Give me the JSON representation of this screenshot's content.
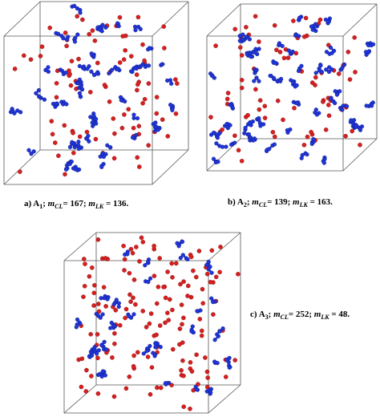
{
  "panels": [
    {
      "caption": {
        "prefix": "a) A",
        "sub": "1",
        "sep1": ";",
        "m1": "m",
        "m1_sub": "CL",
        "m1_value": "= 167;",
        "m2": "m",
        "m2_sub": "LK",
        "m2_value": " = 136."
      }
    },
    {
      "caption": {
        "prefix": "b) A",
        "sub": "2",
        "sep1": ";",
        "m1": "m",
        "m1_sub": "CL",
        "m1_value": "= 139;",
        "m2": "m",
        "m2_sub": "LK",
        "m2_value": " = 163."
      }
    },
    {
      "caption": {
        "prefix": "c) A",
        "sub": "3",
        "sep1": ";",
        "m1": "m",
        "m1_sub": "CL",
        "m1_value": "= 252;",
        "m2": "m",
        "m2_sub": "LK",
        "m2_value": " = 48."
      }
    }
  ]
}
